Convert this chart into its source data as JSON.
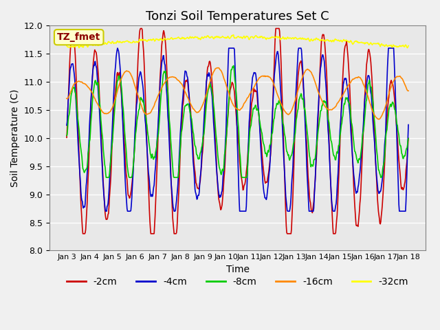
{
  "title": "Tonzi Soil Temperatures Set C",
  "xlabel": "Time",
  "ylabel": "Soil Temperature (C)",
  "ylim": [
    8.0,
    12.0
  ],
  "yticks": [
    8.0,
    8.5,
    9.0,
    9.5,
    10.0,
    10.5,
    11.0,
    11.5,
    12.0
  ],
  "xtick_labels": [
    "Jan 3",
    "Jan 4",
    "Jan 5",
    "Jan 6",
    "Jan 7",
    "Jan 8",
    "Jan 9",
    "Jan 10",
    "Jan 11",
    "Jan 12",
    "Jan 13",
    "Jan 14",
    "Jan 15",
    "Jan 16",
    "Jan 17",
    "Jan 18"
  ],
  "legend_entries": [
    "-2cm",
    "-4cm",
    "-8cm",
    "-16cm",
    "-32cm"
  ],
  "line_colors": [
    "#cc0000",
    "#0000cc",
    "#00cc00",
    "#ff8800",
    "#ffff00"
  ],
  "annotation_text": "TZ_fmet",
  "annotation_color": "#8b0000",
  "annotation_bg": "#ffffcc",
  "annotation_border": "#cccc00",
  "bg_color": "#e8e8e8",
  "grid_color": "#ffffff",
  "title_fontsize": 13,
  "axis_fontsize": 10,
  "legend_fontsize": 10,
  "n_points": 720
}
